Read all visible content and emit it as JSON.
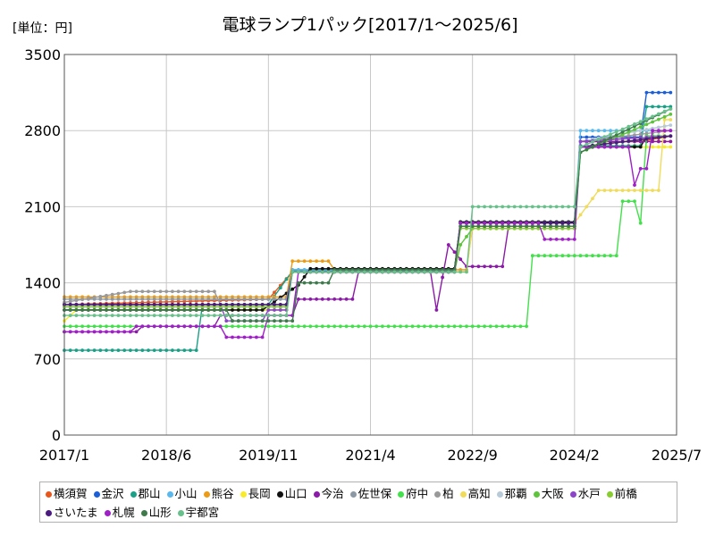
{
  "chart_data": {
    "type": "line",
    "title": "電球ランプ1パック[2017/1～2025/6]",
    "unit_label": "[単位：円]",
    "xlabel": "",
    "ylabel": "",
    "x_range": [
      "2017/1",
      "2025/7"
    ],
    "x_ticks": [
      "2017/1",
      "2018/6",
      "2019/11",
      "2021/4",
      "2022/9",
      "2024/2",
      "2025/7"
    ],
    "ylim": [
      0,
      3500
    ],
    "y_ticks": [
      0,
      700,
      1400,
      2100,
      2800,
      3500
    ],
    "grid": true,
    "legend_position": "bottom",
    "series": [
      {
        "name": "横須賀",
        "color": "#e8561c",
        "points": [
          [
            "2017/1",
            1200
          ],
          [
            "2019/11",
            1250
          ],
          [
            "2020/3",
            1500
          ],
          [
            "2022/6",
            1500
          ],
          [
            "2022/7",
            1950
          ],
          [
            "2024/2",
            1950
          ],
          [
            "2024/3",
            2700
          ],
          [
            "2025/1",
            2700
          ],
          [
            "2025/6",
            2750
          ]
        ]
      },
      {
        "name": "金沢",
        "color": "#1b5ed6",
        "points": [
          [
            "2017/1",
            1180
          ],
          [
            "2020/2",
            1180
          ],
          [
            "2020/3",
            1520
          ],
          [
            "2022/6",
            1520
          ],
          [
            "2022/7",
            1960
          ],
          [
            "2024/2",
            1960
          ],
          [
            "2024/3",
            2740
          ],
          [
            "2025/1",
            2740
          ],
          [
            "2025/2",
            3150
          ],
          [
            "2025/6",
            3150
          ]
        ]
      },
      {
        "name": "郡山",
        "color": "#19a086",
        "points": [
          [
            "2017/1",
            780
          ],
          [
            "2018/11",
            780
          ],
          [
            "2018/12",
            1200
          ],
          [
            "2019/11",
            1200
          ],
          [
            "2020/3",
            1510
          ],
          [
            "2022/6",
            1510
          ],
          [
            "2022/7",
            1920
          ],
          [
            "2024/2",
            1920
          ],
          [
            "2024/3",
            2660
          ],
          [
            "2025/1",
            2660
          ],
          [
            "2025/2",
            3020
          ],
          [
            "2025/6",
            3020
          ]
        ]
      },
      {
        "name": "小山",
        "color": "#5bb8ec",
        "points": [
          [
            "2017/1",
            1150
          ],
          [
            "2020/2",
            1150
          ],
          [
            "2020/3",
            1520
          ],
          [
            "2022/6",
            1520
          ],
          [
            "2022/7",
            1950
          ],
          [
            "2024/2",
            1950
          ],
          [
            "2024/3",
            2800
          ],
          [
            "2025/6",
            2800
          ]
        ]
      },
      {
        "name": "熊谷",
        "color": "#ec9b14",
        "points": [
          [
            "2017/1",
            1270
          ],
          [
            "2020/2",
            1270
          ],
          [
            "2020/3",
            1600
          ],
          [
            "2020/9",
            1600
          ],
          [
            "2020/10",
            1520
          ],
          [
            "2022/8",
            1520
          ],
          [
            "2022/9",
            1920
          ],
          [
            "2024/2",
            1920
          ],
          [
            "2024/3",
            2700
          ],
          [
            "2025/6",
            2700
          ]
        ]
      },
      {
        "name": "長岡",
        "color": "#f8ec2a",
        "points": [
          [
            "2017/1",
            1050
          ],
          [
            "2017/3",
            1150
          ],
          [
            "2020/2",
            1150
          ],
          [
            "2020/3",
            1500
          ],
          [
            "2022/8",
            1500
          ],
          [
            "2022/9",
            1950
          ],
          [
            "2024/2",
            1950
          ],
          [
            "2024/3",
            2650
          ],
          [
            "2025/6",
            2650
          ]
        ]
      },
      {
        "name": "山口",
        "color": "#111111",
        "points": [
          [
            "2017/1",
            1150
          ],
          [
            "2019/10",
            1150
          ],
          [
            "2020/4",
            1380
          ],
          [
            "2020/6",
            1530
          ],
          [
            "2022/6",
            1530
          ],
          [
            "2022/7",
            1960
          ],
          [
            "2024/2",
            1960
          ],
          [
            "2024/3",
            2650
          ],
          [
            "2025/1",
            2650
          ],
          [
            "2025/2",
            2750
          ],
          [
            "2025/6",
            2750
          ]
        ]
      },
      {
        "name": "今治",
        "color": "#8c1aa8",
        "points": [
          [
            "2017/1",
            950
          ],
          [
            "2018/1",
            950
          ],
          [
            "2018/2",
            1000
          ],
          [
            "2019/2",
            1000
          ],
          [
            "2019/3",
            1100
          ],
          [
            "2020/3",
            1100
          ],
          [
            "2020/4",
            1250
          ],
          [
            "2021/1",
            1250
          ],
          [
            "2021/2",
            1500
          ],
          [
            "2022/2",
            1500
          ],
          [
            "2022/3",
            1150
          ],
          [
            "2022/5",
            1750
          ],
          [
            "2022/8",
            1550
          ],
          [
            "2023/2",
            1550
          ],
          [
            "2023/3",
            1920
          ],
          [
            "2024/2",
            1920
          ],
          [
            "2024/3",
            2700
          ],
          [
            "2025/6",
            2700
          ]
        ]
      },
      {
        "name": "佐世保",
        "color": "#8c98a4",
        "points": [
          [
            "2017/1",
            1250
          ],
          [
            "2020/2",
            1250
          ],
          [
            "2020/3",
            1500
          ],
          [
            "2022/6",
            1500
          ],
          [
            "2022/7",
            1950
          ],
          [
            "2024/2",
            1950
          ],
          [
            "2024/3",
            2650
          ],
          [
            "2025/6",
            2750
          ]
        ]
      },
      {
        "name": "府中",
        "color": "#42e04a",
        "points": [
          [
            "2017/1",
            1000
          ],
          [
            "2023/6",
            1000
          ],
          [
            "2023/7",
            1650
          ],
          [
            "2024/9",
            1650
          ],
          [
            "2024/10",
            2150
          ],
          [
            "2024/12",
            2150
          ],
          [
            "2025/1",
            1950
          ],
          [
            "2025/2",
            2750
          ],
          [
            "2025/6",
            2750
          ]
        ]
      },
      {
        "name": "柏",
        "color": "#999999",
        "points": [
          [
            "2017/1",
            1220
          ],
          [
            "2017/12",
            1320
          ],
          [
            "2019/2",
            1320
          ],
          [
            "2019/3",
            1200
          ],
          [
            "2020/2",
            1200
          ],
          [
            "2020/3",
            1500
          ],
          [
            "2022/6",
            1500
          ],
          [
            "2022/7",
            1950
          ],
          [
            "2024/2",
            1950
          ],
          [
            "2024/3",
            2700
          ],
          [
            "2025/6",
            2800
          ]
        ]
      },
      {
        "name": "高知",
        "color": "#f0dc5a",
        "points": [
          [
            "2017/1",
            1200
          ],
          [
            "2020/2",
            1200
          ],
          [
            "2020/3",
            1500
          ],
          [
            "2022/8",
            1500
          ],
          [
            "2022/9",
            1950
          ],
          [
            "2024/2",
            1950
          ],
          [
            "2024/6",
            2250
          ],
          [
            "2025/4",
            2250
          ],
          [
            "2025/5",
            2900
          ],
          [
            "2025/6",
            2900
          ]
        ]
      },
      {
        "name": "那覇",
        "color": "#b8c9d8",
        "points": [
          [
            "2017/1",
            1200
          ],
          [
            "2020/2",
            1200
          ],
          [
            "2020/3",
            1500
          ],
          [
            "2022/6",
            1500
          ],
          [
            "2022/7",
            1950
          ],
          [
            "2024/2",
            1950
          ],
          [
            "2024/3",
            2700
          ],
          [
            "2025/6",
            2850
          ]
        ]
      },
      {
        "name": "大阪",
        "color": "#5ec43c",
        "points": [
          [
            "2017/1",
            1200
          ],
          [
            "2020/2",
            1200
          ],
          [
            "2020/3",
            1500
          ],
          [
            "2022/6",
            1500
          ],
          [
            "2022/7",
            1750
          ],
          [
            "2022/9",
            1900
          ],
          [
            "2024/2",
            1900
          ],
          [
            "2024/3",
            2600
          ],
          [
            "2025/6",
            2950
          ]
        ]
      },
      {
        "name": "水戸",
        "color": "#8c44c8",
        "points": [
          [
            "2017/1",
            1200
          ],
          [
            "2019/3",
            1200
          ],
          [
            "2019/4",
            1050
          ],
          [
            "2019/10",
            1050
          ],
          [
            "2019/11",
            1150
          ],
          [
            "2020/2",
            1150
          ],
          [
            "2020/3",
            1500
          ],
          [
            "2022/6",
            1500
          ],
          [
            "2022/7",
            1950
          ],
          [
            "2024/2",
            1950
          ],
          [
            "2024/3",
            2700
          ],
          [
            "2025/6",
            2750
          ]
        ]
      },
      {
        "name": "前橋",
        "color": "#88cc30",
        "points": [
          [
            "2017/1",
            1180
          ],
          [
            "2020/2",
            1180
          ],
          [
            "2020/3",
            1500
          ],
          [
            "2022/6",
            1500
          ],
          [
            "2022/7",
            1900
          ],
          [
            "2024/2",
            1900
          ],
          [
            "2024/3",
            2650
          ],
          [
            "2025/6",
            2750
          ]
        ]
      },
      {
        "name": "さいたま",
        "color": "#4a1a80",
        "points": [
          [
            "2017/1",
            1200
          ],
          [
            "2020/2",
            1200
          ],
          [
            "2020/3",
            1500
          ],
          [
            "2022/6",
            1500
          ],
          [
            "2022/7",
            1950
          ],
          [
            "2024/2",
            1950
          ],
          [
            "2024/3",
            2650
          ],
          [
            "2025/6",
            2750
          ]
        ]
      },
      {
        "name": "札幌",
        "color": "#a020c8",
        "points": [
          [
            "2017/1",
            950
          ],
          [
            "2017/12",
            950
          ],
          [
            "2018/1",
            1000
          ],
          [
            "2019/3",
            1000
          ],
          [
            "2019/4",
            900
          ],
          [
            "2019/10",
            900
          ],
          [
            "2019/11",
            1100
          ],
          [
            "2020/3",
            1100
          ],
          [
            "2020/4",
            1500
          ],
          [
            "2022/6",
            1500
          ],
          [
            "2022/7",
            1950
          ],
          [
            "2023/8",
            1950
          ],
          [
            "2023/9",
            1800
          ],
          [
            "2024/2",
            1800
          ],
          [
            "2024/3",
            2650
          ],
          [
            "2024/11",
            2650
          ],
          [
            "2024/12",
            2300
          ],
          [
            "2025/1",
            2450
          ],
          [
            "2025/2",
            2450
          ],
          [
            "2025/3",
            2800
          ],
          [
            "2025/6",
            2800
          ]
        ]
      },
      {
        "name": "山形",
        "color": "#3e7a4c",
        "points": [
          [
            "2017/1",
            1150
          ],
          [
            "2019/4",
            1150
          ],
          [
            "2019/5",
            1050
          ],
          [
            "2020/3",
            1050
          ],
          [
            "2020/4",
            1400
          ],
          [
            "2020/9",
            1400
          ],
          [
            "2020/10",
            1520
          ],
          [
            "2022/6",
            1520
          ],
          [
            "2022/7",
            1920
          ],
          [
            "2024/2",
            1920
          ],
          [
            "2024/3",
            2600
          ],
          [
            "2025/6",
            3000
          ]
        ]
      },
      {
        "name": "宇都宮",
        "color": "#68c08a",
        "points": [
          [
            "2017/1",
            1100
          ],
          [
            "2020/2",
            1100
          ],
          [
            "2020/3",
            1500
          ],
          [
            "2022/8",
            1500
          ],
          [
            "2022/9",
            2100
          ],
          [
            "2024/2",
            2100
          ],
          [
            "2024/3",
            2650
          ],
          [
            "2025/6",
            3000
          ]
        ]
      }
    ]
  }
}
